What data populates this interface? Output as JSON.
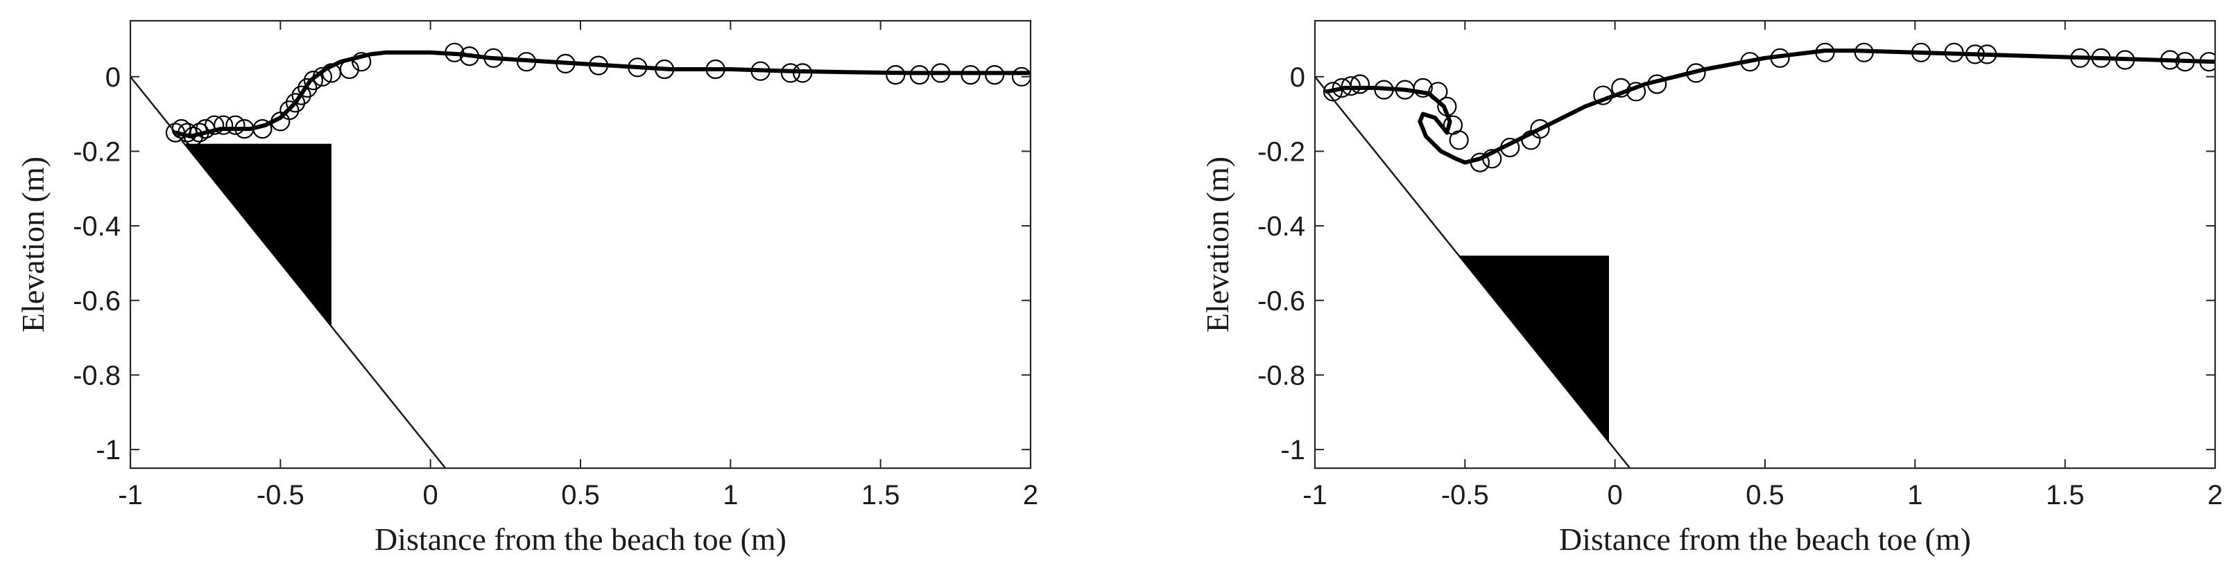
{
  "chart_data": [
    {
      "type": "line",
      "xlabel": "Distance from the beach toe (m)",
      "ylabel": "Elevation (m)",
      "xlim": [
        -1,
        2
      ],
      "ylim": [
        -1.05,
        0.15
      ],
      "xticks": [
        "-1",
        "-0.5",
        "0",
        "0.5",
        "1",
        "1.5",
        "2"
      ],
      "yticks": [
        "0",
        "-0.2",
        "-0.4",
        "-0.6",
        "-0.8",
        "-1"
      ],
      "grid": false,
      "series": [
        {
          "kind": "line",
          "x": [
            -0.85,
            -0.8,
            -0.75,
            -0.7,
            -0.65,
            -0.6,
            -0.55,
            -0.5,
            -0.45,
            -0.4,
            -0.35,
            -0.3,
            -0.25,
            -0.2,
            -0.15,
            -0.1,
            0,
            0.1,
            0.2,
            0.3,
            0.4,
            0.6,
            0.8,
            1.0,
            1.2,
            1.4,
            1.6,
            1.8,
            2.0
          ],
          "y": [
            -0.15,
            -0.16,
            -0.15,
            -0.14,
            -0.14,
            -0.14,
            -0.13,
            -0.11,
            -0.07,
            -0.01,
            0.02,
            0.04,
            0.05,
            0.06,
            0.065,
            0.065,
            0.065,
            0.06,
            0.05,
            0.045,
            0.04,
            0.03,
            0.02,
            0.02,
            0.015,
            0.012,
            0.01,
            0.01,
            0.01
          ]
        },
        {
          "kind": "markers",
          "x": [
            -0.85,
            -0.83,
            -0.81,
            -0.79,
            -0.77,
            -0.75,
            -0.72,
            -0.69,
            -0.65,
            -0.62,
            -0.56,
            -0.5,
            -0.47,
            -0.45,
            -0.43,
            -0.41,
            -0.39,
            -0.36,
            -0.33,
            -0.27,
            -0.23,
            0.08,
            0.13,
            0.21,
            0.32,
            0.45,
            0.56,
            0.69,
            0.78,
            0.95,
            1.1,
            1.2,
            1.24,
            1.55,
            1.63,
            1.7,
            1.8,
            1.88,
            1.97
          ],
          "y": [
            -0.15,
            -0.14,
            -0.15,
            -0.16,
            -0.15,
            -0.14,
            -0.13,
            -0.13,
            -0.13,
            -0.14,
            -0.14,
            -0.12,
            -0.09,
            -0.07,
            -0.05,
            -0.03,
            -0.01,
            0.0,
            0.01,
            0.02,
            0.04,
            0.065,
            0.055,
            0.05,
            0.04,
            0.035,
            0.03,
            0.025,
            0.02,
            0.02,
            0.015,
            0.01,
            0.01,
            0.005,
            0.005,
            0.01,
            0.005,
            0.005,
            0.0
          ]
        },
        {
          "kind": "slope-line",
          "x": [
            -1,
            0.05
          ],
          "y": [
            0,
            -1.05
          ]
        },
        {
          "kind": "filled-triangle",
          "x": [
            -0.82,
            -0.33,
            -0.33
          ],
          "y": [
            -0.18,
            -0.18,
            -0.67
          ]
        }
      ]
    },
    {
      "type": "line",
      "xlabel": "Distance from the beach toe (m)",
      "ylabel": "Elevation (m)",
      "xlim": [
        -1,
        2
      ],
      "ylim": [
        -1.05,
        0.15
      ],
      "xticks": [
        "-1",
        "-0.5",
        "0",
        "0.5",
        "1",
        "1.5",
        "2"
      ],
      "yticks": [
        "0",
        "-0.2",
        "-0.4",
        "-0.6",
        "-0.8",
        "-1"
      ],
      "grid": false,
      "series": [
        {
          "kind": "line",
          "x": [
            -0.96,
            -0.9,
            -0.8,
            -0.7,
            -0.62,
            -0.57,
            -0.55,
            -0.56,
            -0.6,
            -0.64,
            -0.65,
            -0.63,
            -0.58,
            -0.53,
            -0.5,
            -0.45,
            -0.4,
            -0.3,
            -0.2,
            -0.1,
            0,
            0.1,
            0.2,
            0.3,
            0.4,
            0.5,
            0.6,
            0.7,
            0.8,
            1.0,
            1.2,
            1.4,
            1.6,
            1.8,
            2.0
          ],
          "y": [
            -0.04,
            -0.03,
            -0.03,
            -0.035,
            -0.045,
            -0.08,
            -0.12,
            -0.15,
            -0.11,
            -0.1,
            -0.12,
            -0.16,
            -0.2,
            -0.22,
            -0.23,
            -0.22,
            -0.2,
            -0.16,
            -0.12,
            -0.08,
            -0.05,
            -0.02,
            0.0,
            0.02,
            0.035,
            0.05,
            0.06,
            0.07,
            0.07,
            0.065,
            0.06,
            0.055,
            0.05,
            0.045,
            0.04
          ]
        },
        {
          "kind": "markers",
          "x": [
            -0.94,
            -0.91,
            -0.88,
            -0.85,
            -0.77,
            -0.7,
            -0.64,
            -0.59,
            -0.56,
            -0.54,
            -0.52,
            -0.45,
            -0.41,
            -0.35,
            -0.28,
            -0.25,
            -0.04,
            0.02,
            0.07,
            0.14,
            0.27,
            0.45,
            0.55,
            0.7,
            0.83,
            1.02,
            1.13,
            1.2,
            1.24,
            1.55,
            1.62,
            1.7,
            1.85,
            1.9,
            1.98
          ],
          "y": [
            -0.04,
            -0.03,
            -0.025,
            -0.02,
            -0.035,
            -0.035,
            -0.03,
            -0.04,
            -0.08,
            -0.13,
            -0.17,
            -0.23,
            -0.22,
            -0.19,
            -0.17,
            -0.14,
            -0.05,
            -0.03,
            -0.04,
            -0.02,
            0.01,
            0.04,
            0.05,
            0.065,
            0.065,
            0.065,
            0.065,
            0.06,
            0.06,
            0.05,
            0.05,
            0.045,
            0.045,
            0.04,
            0.04
          ]
        },
        {
          "kind": "slope-line",
          "x": [
            -1,
            0.05
          ],
          "y": [
            0,
            -1.05
          ]
        },
        {
          "kind": "filled-triangle",
          "x": [
            -0.52,
            -0.02,
            -0.02
          ],
          "y": [
            -0.48,
            -0.48,
            -0.98
          ]
        }
      ]
    }
  ]
}
